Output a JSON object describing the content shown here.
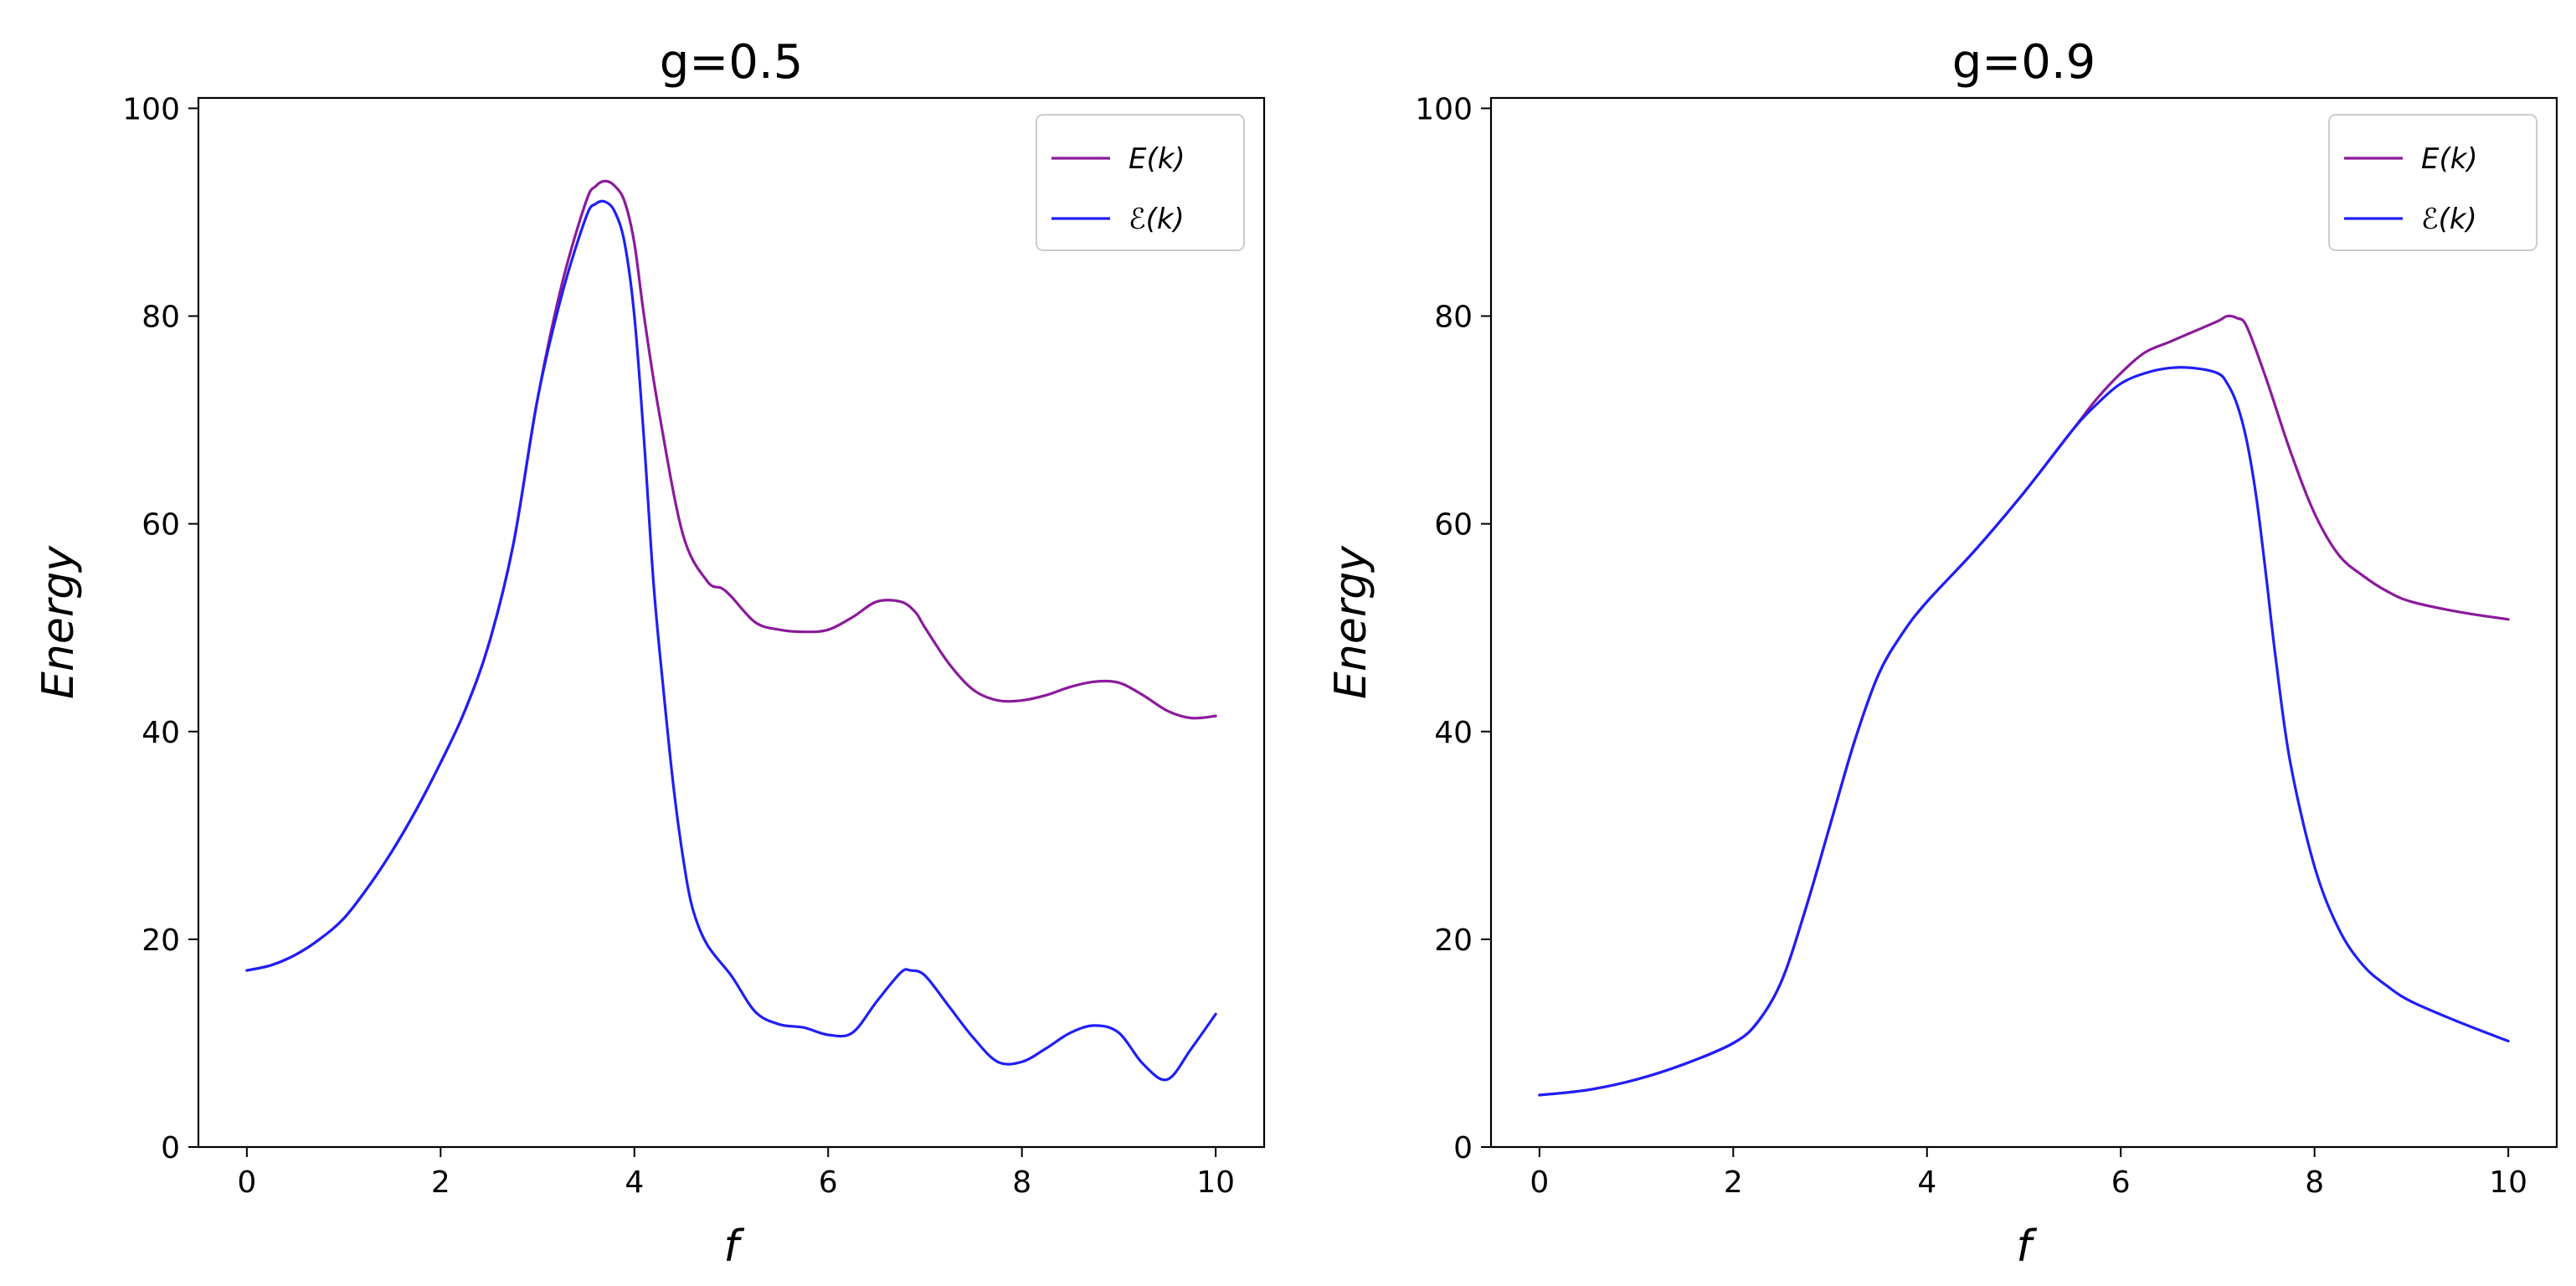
{
  "chart_data": [
    {
      "type": "line",
      "title": "g=0.5",
      "xlabel": "f",
      "ylabel": "Energy",
      "xlim": [
        -0.5,
        10.5
      ],
      "ylim": [
        0,
        101
      ],
      "xticks": [
        0,
        2,
        4,
        6,
        8,
        10
      ],
      "yticks": [
        0,
        20,
        40,
        60,
        80,
        100
      ],
      "grid": false,
      "legend_position": "top-right",
      "series": [
        {
          "name": "E(k)",
          "color": "#8b1a9b",
          "x": [
            0,
            0.25,
            0.5,
            0.75,
            1,
            1.25,
            1.5,
            1.75,
            2,
            2.25,
            2.5,
            2.75,
            3,
            3.25,
            3.5,
            3.6,
            3.7,
            3.8,
            3.9,
            4,
            4.1,
            4.25,
            4.5,
            4.75,
            4.9,
            5,
            5.25,
            5.5,
            5.75,
            6,
            6.25,
            6.5,
            6.75,
            6.9,
            7,
            7.25,
            7.5,
            7.75,
            8,
            8.25,
            8.5,
            8.75,
            9,
            9.25,
            9.5,
            9.75,
            10
          ],
          "y": [
            17,
            17.5,
            18.5,
            20,
            22,
            25,
            28.5,
            32.5,
            37,
            42,
            48.5,
            58,
            72,
            83,
            91,
            92.5,
            93,
            92.5,
            91,
            87,
            80,
            71,
            59,
            54.5,
            53.8,
            53,
            50.5,
            49.8,
            49.6,
            49.8,
            51,
            52.5,
            52.5,
            51.5,
            50,
            46.5,
            44,
            43,
            43,
            43.5,
            44.3,
            44.8,
            44.7,
            43.5,
            42,
            41.3,
            41.5
          ]
        },
        {
          "name": "ℰ(k)",
          "color": "#1f1ff5",
          "x": [
            0,
            0.25,
            0.5,
            0.75,
            1,
            1.25,
            1.5,
            1.75,
            2,
            2.25,
            2.5,
            2.75,
            3,
            3.25,
            3.5,
            3.6,
            3.7,
            3.8,
            3.9,
            4,
            4.1,
            4.2,
            4.3,
            4.4,
            4.5,
            4.6,
            4.75,
            5,
            5.25,
            5.5,
            5.75,
            6,
            6.25,
            6.5,
            6.75,
            6.85,
            7,
            7.25,
            7.5,
            7.75,
            8,
            8.25,
            8.5,
            8.75,
            9,
            9.25,
            9.5,
            9.75,
            10
          ],
          "y": [
            17,
            17.5,
            18.5,
            20,
            22,
            25,
            28.5,
            32.5,
            37,
            42,
            48.5,
            58,
            72,
            82,
            89.5,
            90.8,
            91,
            90,
            87,
            80,
            68,
            54,
            44,
            35,
            28,
            23,
            19.5,
            16.5,
            13,
            11.8,
            11.5,
            10.8,
            11,
            14,
            16.8,
            17,
            16.5,
            13.5,
            10.5,
            8.2,
            8.2,
            9.5,
            11,
            11.7,
            11,
            8,
            6.5,
            9.5,
            12.8
          ]
        }
      ]
    },
    {
      "type": "line",
      "title": "g=0.9",
      "xlabel": "f",
      "ylabel": "Energy",
      "xlim": [
        -0.5,
        10.5
      ],
      "ylim": [
        0,
        101
      ],
      "xticks": [
        0,
        2,
        4,
        6,
        8,
        10
      ],
      "yticks": [
        0,
        20,
        40,
        60,
        80,
        100
      ],
      "grid": false,
      "legend_position": "top-right",
      "series": [
        {
          "name": "E(k)",
          "color": "#8b1a9b",
          "x": [
            0,
            0.5,
            1,
            1.5,
            2,
            2.25,
            2.5,
            2.75,
            3,
            3.25,
            3.5,
            3.75,
            4,
            4.5,
            5,
            5.5,
            5.75,
            6,
            6.25,
            6.5,
            6.75,
            7,
            7.1,
            7.2,
            7.3,
            7.5,
            7.75,
            8,
            8.25,
            8.5,
            8.75,
            9,
            9.5,
            10
          ],
          "y": [
            5,
            5.5,
            6.5,
            8,
            10,
            12,
            16,
            23,
            31,
            39,
            45.5,
            49.5,
            52.5,
            57.5,
            63,
            69,
            72,
            74.5,
            76.5,
            77.5,
            78.5,
            79.5,
            80,
            79.8,
            79,
            74,
            67,
            61,
            57,
            55,
            53.5,
            52.5,
            51.5,
            50.8
          ]
        },
        {
          "name": "ℰ(k)",
          "color": "#1f1ff5",
          "x": [
            0,
            0.5,
            1,
            1.5,
            2,
            2.25,
            2.5,
            2.75,
            3,
            3.25,
            3.5,
            3.75,
            4,
            4.5,
            5,
            5.5,
            5.75,
            6,
            6.25,
            6.5,
            6.75,
            7,
            7.1,
            7.2,
            7.3,
            7.4,
            7.5,
            7.6,
            7.75,
            8,
            8.25,
            8.5,
            8.75,
            9,
            9.5,
            10
          ],
          "y": [
            5,
            5.5,
            6.5,
            8,
            10,
            12,
            16,
            23,
            31,
            39,
            45.5,
            49.5,
            52.5,
            57.5,
            63,
            69,
            71.5,
            73.5,
            74.5,
            75,
            75,
            74.5,
            73.5,
            71.5,
            68,
            62.5,
            55,
            47,
            37,
            27,
            21,
            17.5,
            15.5,
            14,
            12,
            10.2
          ]
        }
      ]
    }
  ]
}
